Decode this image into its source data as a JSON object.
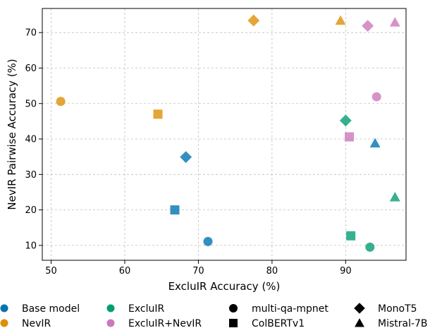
{
  "chart_data": {
    "type": "scatter",
    "xlabel": "ExcluIR Accuracy (%)",
    "ylabel": "NevIR Pairwise Accuracy (%)",
    "xlim": [
      48.8,
      98.2
    ],
    "ylim": [
      5.8,
      76.8
    ],
    "xticks": [
      50,
      60,
      70,
      80,
      90
    ],
    "yticks": [
      10,
      20,
      30,
      40,
      50,
      60,
      70
    ],
    "grid": true,
    "training_legend": [
      {
        "name": "Base model",
        "color": "#0173b2"
      },
      {
        "name": "NevIR",
        "color": "#de8f05"
      },
      {
        "name": "ExcluIR",
        "color": "#029e73"
      },
      {
        "name": "ExcluIR+NevIR",
        "color": "#cc78bc"
      }
    ],
    "model_legend": [
      {
        "name": "multi-qa-mpnet",
        "marker": "circle"
      },
      {
        "name": "ColBERTv1",
        "marker": "square"
      },
      {
        "name": "MonoT5",
        "marker": "diamond"
      },
      {
        "name": "Mistral-7B",
        "marker": "triangle"
      }
    ],
    "points": [
      {
        "training": "Base model",
        "model": "multi-qa-mpnet",
        "x": 71.3,
        "y": 11.1
      },
      {
        "training": "Base model",
        "model": "ColBERTv1",
        "x": 66.8,
        "y": 20.0
      },
      {
        "training": "Base model",
        "model": "MonoT5",
        "x": 68.3,
        "y": 34.9
      },
      {
        "training": "Base model",
        "model": "Mistral-7B",
        "x": 94.0,
        "y": 38.8
      },
      {
        "training": "NevIR",
        "model": "multi-qa-mpnet",
        "x": 51.3,
        "y": 50.6
      },
      {
        "training": "NevIR",
        "model": "ColBERTv1",
        "x": 64.5,
        "y": 47.0
      },
      {
        "training": "NevIR",
        "model": "MonoT5",
        "x": 77.5,
        "y": 73.4
      },
      {
        "training": "NevIR",
        "model": "Mistral-7B",
        "x": 89.3,
        "y": 73.4
      },
      {
        "training": "ExcluIR",
        "model": "multi-qa-mpnet",
        "x": 93.3,
        "y": 9.5
      },
      {
        "training": "ExcluIR",
        "model": "ColBERTv1",
        "x": 90.7,
        "y": 12.7
      },
      {
        "training": "ExcluIR",
        "model": "MonoT5",
        "x": 90.0,
        "y": 45.2
      },
      {
        "training": "ExcluIR",
        "model": "Mistral-7B",
        "x": 96.7,
        "y": 23.6
      },
      {
        "training": "ExcluIR+NevIR",
        "model": "multi-qa-mpnet",
        "x": 94.2,
        "y": 51.9
      },
      {
        "training": "ExcluIR+NevIR",
        "model": "ColBERTv1",
        "x": 90.5,
        "y": 40.6
      },
      {
        "training": "ExcluIR+NevIR",
        "model": "MonoT5",
        "x": 93.0,
        "y": 71.9
      },
      {
        "training": "ExcluIR+NevIR",
        "model": "Mistral-7B",
        "x": 96.7,
        "y": 72.9
      }
    ]
  }
}
